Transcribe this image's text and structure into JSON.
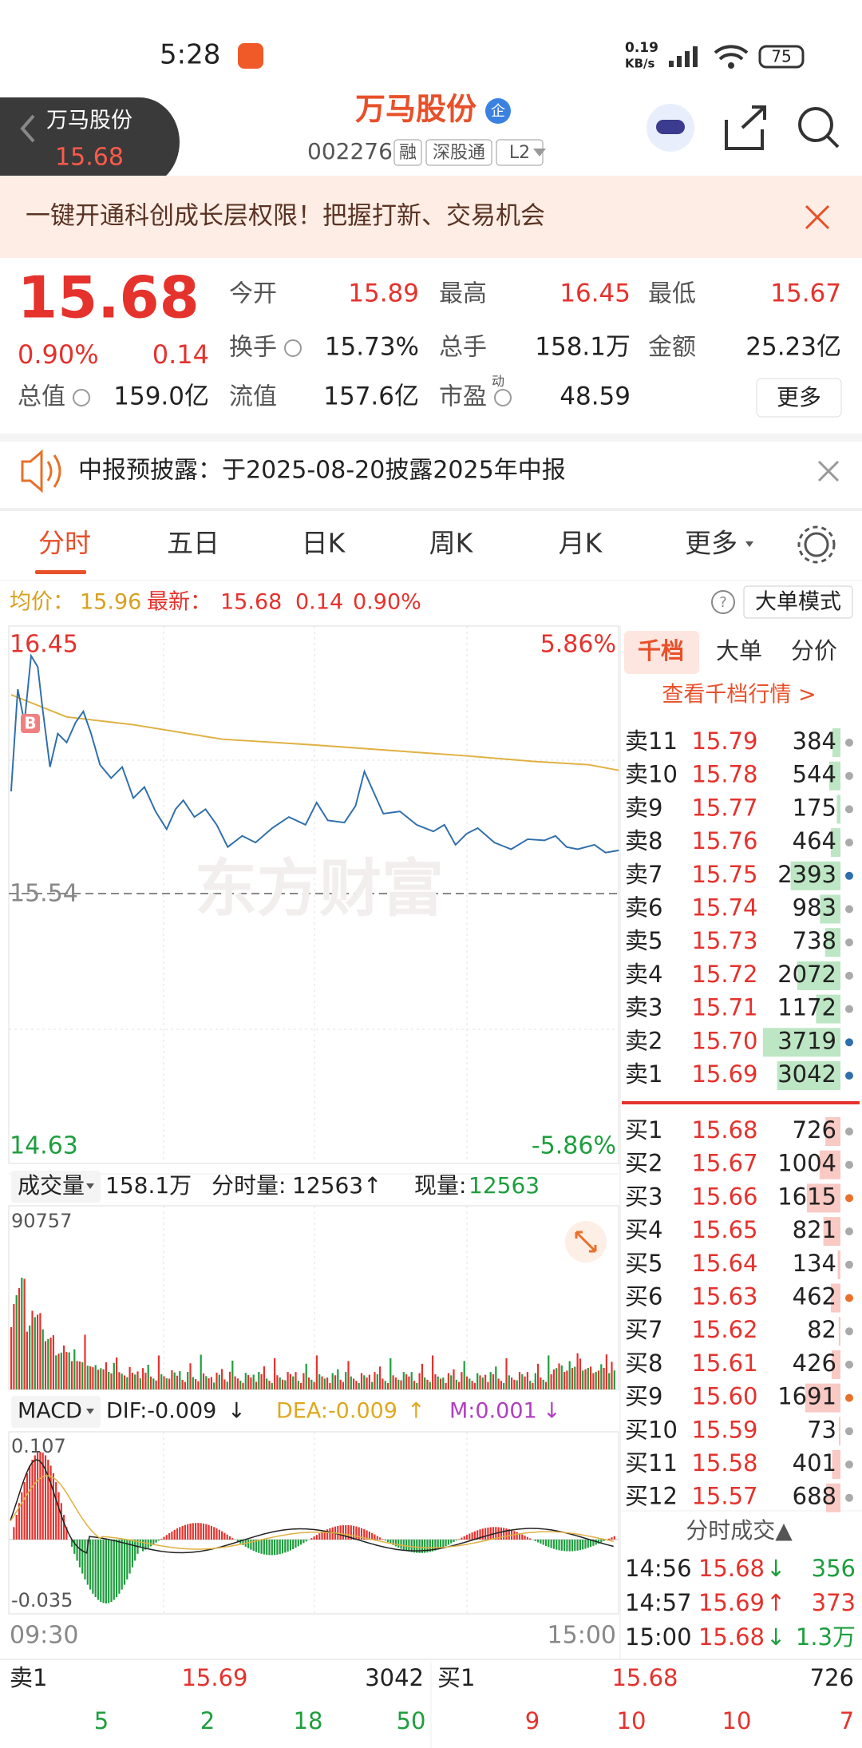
{
  "status_bar": {
    "time": "5:28",
    "net": "0.19",
    "net_unit": "KB/s",
    "battery": "75"
  },
  "header": {
    "back_name": "万马股份",
    "back_price": "15.68",
    "title": "万马股份",
    "badge": "企",
    "code": "002276",
    "tags": [
      "融",
      "深股通",
      "L2"
    ]
  },
  "banner": {
    "text": "一键开通科创成长层权限！把握打新、交易机会"
  },
  "quote": {
    "price": "15.68",
    "pct": "0.90%",
    "change": "0.14",
    "more": "更多",
    "fields": [
      {
        "label": "今开",
        "value": "15.89"
      },
      {
        "label": "最高",
        "value": "16.45"
      },
      {
        "label": "最低",
        "value": "15.67"
      },
      {
        "label": "换手",
        "value": "15.73%"
      },
      {
        "label": "总手",
        "value": "158.1万"
      },
      {
        "label": "金额",
        "value": "25.23亿"
      },
      {
        "label": "总值",
        "value": "159.0亿"
      },
      {
        "label": "流值",
        "value": "157.6亿"
      },
      {
        "label": "市盈",
        "value": "48.59",
        "sup": "动"
      }
    ]
  },
  "notice": {
    "text": "中报预披露：于2025-08-20披露2025年中报"
  },
  "tabs": [
    "分时",
    "五日",
    "日K",
    "周K",
    "月K",
    "更多"
  ],
  "info": {
    "avg_label": "均价：",
    "avg": "15.96",
    "latest_label": "最新：",
    "latest": "15.68",
    "change": "0.14",
    "pct": "0.90%",
    "mode": "大单模式"
  },
  "chart": {
    "high": "16.45",
    "high_pct": "5.86%",
    "mid": "15.54",
    "low": "14.63",
    "low_pct": "-5.86%",
    "watermark": "东方财富",
    "marker": "B"
  },
  "volume": {
    "label": "成交量",
    "total": "158.1万",
    "fen_label": "分时量:",
    "fen": "12563",
    "fen_arrow": "↑",
    "xian_label": "现量:",
    "xian": "12563",
    "max": "90757"
  },
  "macd": {
    "label": "MACD",
    "dif": "DIF:-0.009",
    "dif_arrow": "↓",
    "dea": "DEA:-0.009",
    "dea_arrow": "↑",
    "m": "M:0.001",
    "m_arrow": "↓",
    "top": "0.107",
    "bottom": "-0.035",
    "start": "09:30",
    "end": "15:00"
  },
  "book": {
    "tabs": [
      "千档",
      "大单",
      "分价"
    ],
    "link": "查看千档行情 >",
    "sells": [
      {
        "label": "卖11",
        "price": "15.79",
        "qty": 384,
        "dot": "#aaa"
      },
      {
        "label": "卖10",
        "price": "15.78",
        "qty": 544,
        "dot": "#aaa"
      },
      {
        "label": "卖9",
        "price": "15.77",
        "qty": 175,
        "dot": "#aaa"
      },
      {
        "label": "卖8",
        "price": "15.76",
        "qty": 464,
        "dot": "#aaa"
      },
      {
        "label": "卖7",
        "price": "15.75",
        "qty": 2393,
        "dot": "#2f6eab"
      },
      {
        "label": "卖6",
        "price": "15.74",
        "qty": 983,
        "dot": "#aaa"
      },
      {
        "label": "卖5",
        "price": "15.73",
        "qty": 738,
        "dot": "#aaa"
      },
      {
        "label": "卖4",
        "price": "15.72",
        "qty": 2072,
        "dot": "#aaa"
      },
      {
        "label": "卖3",
        "price": "15.71",
        "qty": 1172,
        "dot": "#aaa"
      },
      {
        "label": "卖2",
        "price": "15.70",
        "qty": 3719,
        "dot": "#2f6eab"
      },
      {
        "label": "卖1",
        "price": "15.69",
        "qty": 3042,
        "dot": "#2f6eab"
      }
    ],
    "buys": [
      {
        "label": "买1",
        "price": "15.68",
        "qty": 726,
        "dot": "#aaa"
      },
      {
        "label": "买2",
        "price": "15.67",
        "qty": 1004,
        "dot": "#aaa"
      },
      {
        "label": "买3",
        "price": "15.66",
        "qty": 1615,
        "dot": "#e8702a"
      },
      {
        "label": "买4",
        "price": "15.65",
        "qty": 821,
        "dot": "#aaa"
      },
      {
        "label": "买5",
        "price": "15.64",
        "qty": 134,
        "dot": "#aaa"
      },
      {
        "label": "买6",
        "price": "15.63",
        "qty": 462,
        "dot": "#e8702a"
      },
      {
        "label": "买7",
        "price": "15.62",
        "qty": 82,
        "dot": "#aaa"
      },
      {
        "label": "买8",
        "price": "15.61",
        "qty": 426,
        "dot": "#aaa"
      },
      {
        "label": "买9",
        "price": "15.60",
        "qty": 1691,
        "dot": "#e8702a"
      },
      {
        "label": "买10",
        "price": "15.59",
        "qty": 73,
        "dot": "#aaa"
      },
      {
        "label": "买11",
        "price": "15.58",
        "qty": 401,
        "dot": "#aaa"
      },
      {
        "label": "买12",
        "price": "15.57",
        "qty": 688,
        "dot": "#aaa"
      }
    ],
    "trades_title": "分时成交▲",
    "trades": [
      {
        "time": "14:56",
        "price": "15.68",
        "arrow": "↓",
        "vol": "356"
      },
      {
        "time": "14:57",
        "price": "15.69",
        "arrow": "↑",
        "vol": "373"
      },
      {
        "time": "15:00",
        "price": "15.68",
        "arrow": "↓",
        "vol": "1.3万"
      }
    ]
  },
  "bottom": {
    "sell_label": "卖1",
    "sell_price": "15.69",
    "sell_qty": "3042",
    "buy_label": "买1",
    "buy_price": "15.68",
    "buy_qty": "726",
    "counts": [
      5,
      2,
      18,
      50,
      9,
      10,
      10,
      7
    ]
  }
}
